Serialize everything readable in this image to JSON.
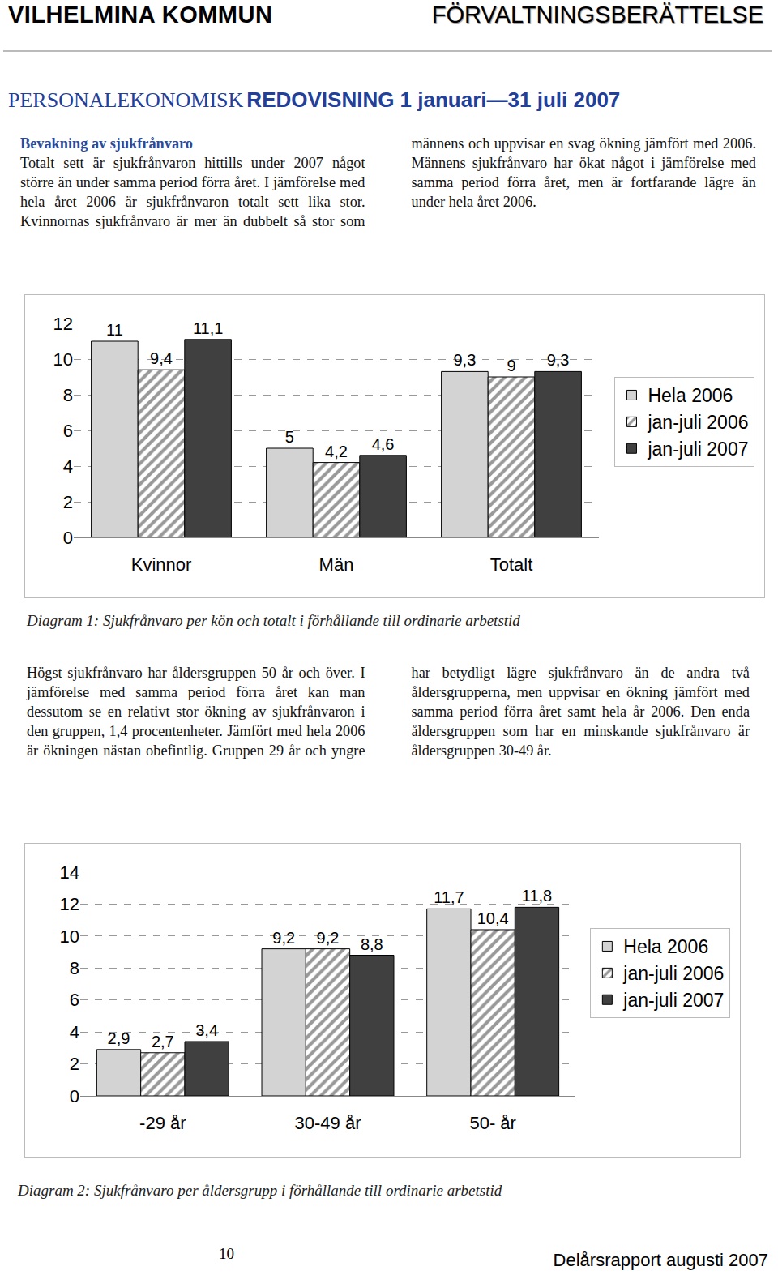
{
  "header": {
    "left": "VILHELMINA KOMMUN",
    "right": "FÖRVALTNINGSBERÄTTELSE"
  },
  "title": {
    "part1": "PERSONALEKONOMISK",
    "part2": "REDOVISNING 1 januari—31 juli 2007"
  },
  "section1": {
    "heading": "Bevakning av sjukfrånvaro",
    "text": "Totalt sett är sjukfrånvaron hittills under 2007 något större än under samma period förra året. I jämförelse med hela året 2006 är sjukfrånvaron totalt sett lika stor. Kvinnornas sjukfrånvaro är mer än dubbelt så stor som männens och uppvisar en svag ökning jämfört med 2006. Männens sjukfrånvaro har ökat något i jämförelse med samma period förra året, men är fortfarande lägre än under hela året 2006."
  },
  "section2": {
    "text": "Högst sjukfrånvaro har åldersgruppen 50 år och över. I jämförelse med samma period förra året kan man dessutom se en relativt stor ökning av sjukfrånvaron i den gruppen, 1,4 procentenheter. Jämfört med hela 2006 är ökningen nästan obefintlig. Gruppen 29 år och yngre har betydligt lägre sjukfrånvaro än de andra två åldersgrupperna, men uppvisar en ökning jämfört med samma period förra året samt hela år 2006. Den enda åldersgruppen som har en minskande sjukfrånvaro är åldersgruppen 30-49 år."
  },
  "captions": [
    "Diagram 1: Sjukfrånvaro per kön och totalt i förhållande till ordinarie arbetstid",
    "Diagram 2: Sjukfrånvaro per åldersgrupp i förhållande till ordinarie arbetstid"
  ],
  "chart_data": [
    {
      "type": "bar",
      "categories": [
        "Kvinnor",
        "Män",
        "Totalt"
      ],
      "series": [
        {
          "name": "Hela 2006",
          "color": "#d3d3d3",
          "marker": "solid",
          "values": [
            11,
            5,
            9.3
          ],
          "value_labels": [
            "11",
            "5",
            "9,3"
          ]
        },
        {
          "name": "jan-juli 2006",
          "color": "#333333",
          "marker": "hatched",
          "values": [
            9.4,
            4.2,
            9
          ],
          "value_labels": [
            "9,4",
            "4,2",
            "9"
          ]
        },
        {
          "name": "jan-juli 2007",
          "color": "#404040",
          "marker": "solid",
          "values": [
            11.1,
            4.6,
            9.3
          ],
          "value_labels": [
            "11,1",
            "4,6",
            "9,3"
          ]
        }
      ],
      "ylim": [
        0,
        12
      ],
      "yticks": [
        0,
        2,
        4,
        6,
        8,
        10,
        12
      ],
      "grid": true,
      "legend": "right",
      "data_labels": true
    },
    {
      "type": "bar",
      "categories": [
        "-29 år",
        "30-49 år",
        "50- år"
      ],
      "series": [
        {
          "name": "Hela 2006",
          "color": "#d3d3d3",
          "marker": "solid",
          "values": [
            2.9,
            9.2,
            11.7
          ],
          "value_labels": [
            "2,9",
            "9,2",
            "11,7"
          ]
        },
        {
          "name": "jan-juli 2006",
          "color": "#333333",
          "marker": "hatched",
          "values": [
            2.7,
            9.2,
            10.4
          ],
          "value_labels": [
            "2,7",
            "9,2",
            "10,4"
          ]
        },
        {
          "name": "jan-juli 2007",
          "color": "#404040",
          "marker": "solid",
          "values": [
            3.4,
            8.8,
            11.8
          ],
          "value_labels": [
            "3,4",
            "8,8",
            "11,8"
          ]
        }
      ],
      "ylim": [
        0,
        14
      ],
      "yticks": [
        0,
        2,
        4,
        6,
        8,
        10,
        12,
        14
      ],
      "grid": true,
      "legend": "right",
      "data_labels": true
    }
  ],
  "footer": {
    "page": "10",
    "report": "Delårsrapport augusti 2007"
  }
}
